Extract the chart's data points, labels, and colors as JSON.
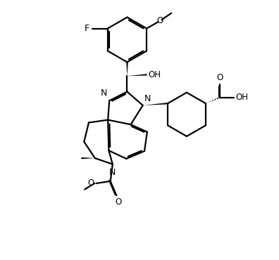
{
  "bg_color": "#ffffff",
  "line_color": "#000000",
  "line_width": 1.6,
  "font_size": 8.5,
  "figsize": [
    3.96,
    3.7
  ],
  "dpi": 100,
  "xlim": [
    -1.0,
    9.0
  ],
  "ylim": [
    -0.5,
    9.0
  ]
}
